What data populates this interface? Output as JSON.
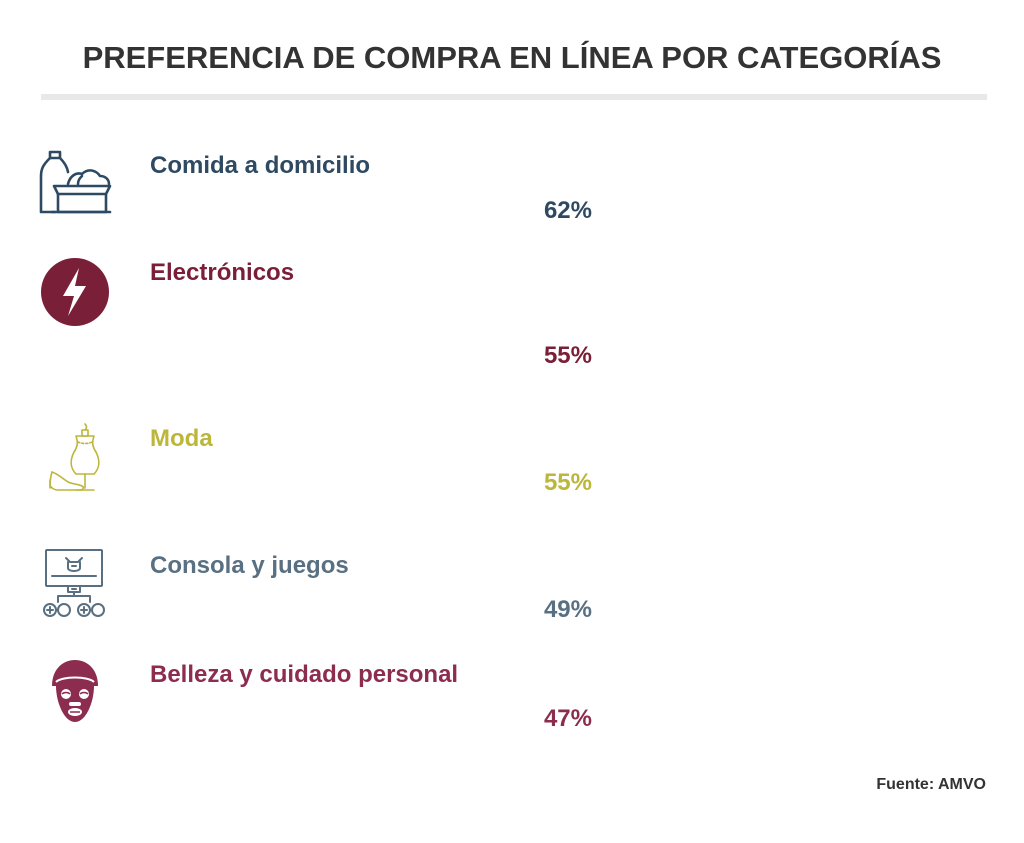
{
  "chart_data": {
    "type": "table",
    "title": "PREFERENCIA DE COMPRA EN LÍNEA POR CATEGORÍAS",
    "categories": [
      "Comida a domicilio",
      "Electrónicos",
      "Moda",
      "Consola y juegos",
      "Belleza y cuidado personal"
    ],
    "values": [
      62,
      55,
      55,
      49,
      47
    ],
    "value_labels": [
      "62%",
      "55%",
      "55%",
      "49%",
      "47%"
    ],
    "icons": [
      "grocery-basket-icon",
      "lightning-bolt-icon",
      "mannequin-shoe-icon",
      "game-console-icon",
      "face-mask-icon"
    ],
    "colors": [
      "#2e4a62",
      "#7a1f38",
      "#bcb63a",
      "#587082",
      "#8c2c4f"
    ],
    "source": "Fuente: AMVO"
  }
}
